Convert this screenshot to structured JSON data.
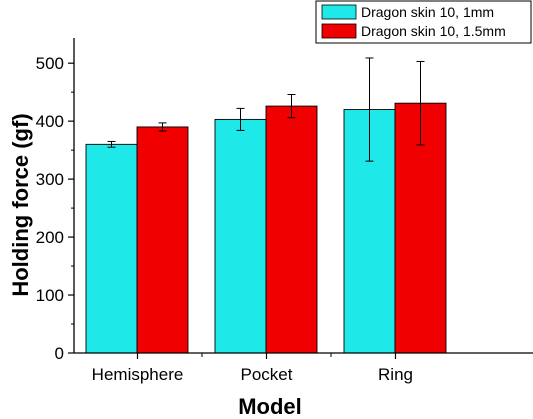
{
  "chart_data": {
    "type": "bar",
    "xlabel": "Model",
    "ylabel": "Holding force (gf)",
    "categories": [
      "Hemisphere",
      "Pocket",
      "Ring"
    ],
    "ylim": [
      0,
      540
    ],
    "yticks": [
      0,
      100,
      200,
      300,
      400,
      500
    ],
    "legend_position": "top-right",
    "series": [
      {
        "name": "Dragon skin 10, 1mm",
        "color": "#1ee8e8",
        "values": [
          360,
          403,
          420
        ],
        "errors": [
          5,
          19,
          89
        ]
      },
      {
        "name": "Dragon skin 10, 1.5mm",
        "color": "#f00000",
        "values": [
          390,
          426,
          431
        ],
        "errors": [
          7,
          20,
          72
        ]
      }
    ]
  }
}
